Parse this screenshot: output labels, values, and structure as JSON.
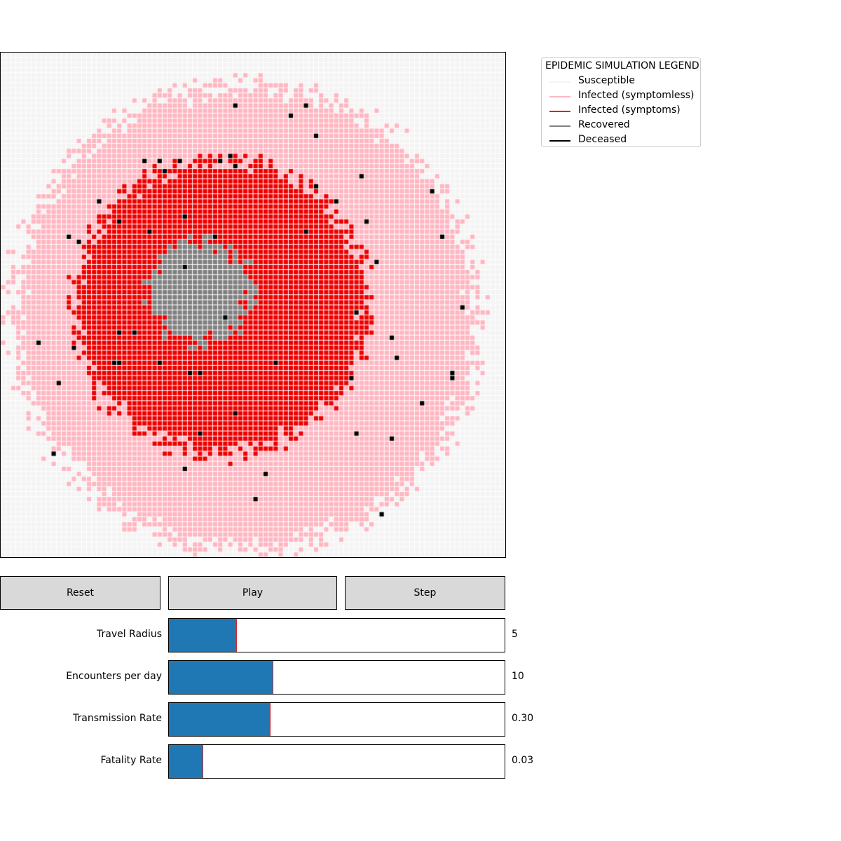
{
  "colors": {
    "susceptible": "#f4f4f4",
    "infected_symptomless": "#ffb6c1",
    "infected_symptoms": "#ee0000",
    "recovered": "#808080",
    "deceased": "#000000",
    "slider_fill": "#1f77b4",
    "slider_marker": "#d62728",
    "button_bg": "#d9d9d9"
  },
  "grid": {
    "size": 100,
    "infected_center": [
      48,
      52
    ],
    "infected_radius": 46,
    "symptoms_center": [
      43,
      50
    ],
    "symptoms_radius": 29,
    "recovered_center": [
      39,
      47
    ],
    "recovered_radius": 10
  },
  "legend": {
    "title": "EPIDEMIC SIMULATION LEGEND",
    "items": [
      {
        "label": "Susceptible",
        "color": "#f4f4f4"
      },
      {
        "label": "Infected (symptomless)",
        "color": "#ffb6c1"
      },
      {
        "label": "Infected (symptoms)",
        "color": "#ee0000"
      },
      {
        "label": "Recovered",
        "color": "#808080"
      },
      {
        "label": "Deceased",
        "color": "#000000"
      }
    ]
  },
  "controls": {
    "reset_label": "Reset",
    "play_label": "Play",
    "step_label": "Step"
  },
  "sliders": [
    {
      "label": "Travel Radius",
      "value_text": "5",
      "fraction": 0.2
    },
    {
      "label": "Encounters per day",
      "value_text": "10",
      "fraction": 0.31
    },
    {
      "label": "Transmission Rate",
      "value_text": "0.30",
      "fraction": 0.3
    },
    {
      "label": "Fatality Rate",
      "value_text": "0.03",
      "fraction": 0.1
    }
  ]
}
